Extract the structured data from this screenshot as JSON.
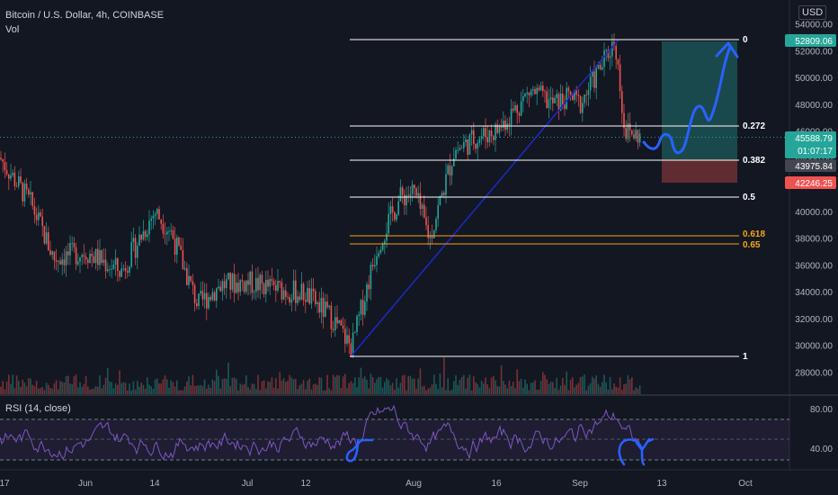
{
  "header": {
    "title": "Bitcoin / U.S. Dollar, 4h, COINBASE",
    "volume_label": "Vol",
    "currency": "USD"
  },
  "rsi": {
    "label": "RSI (14, close)",
    "ticks": [
      "80.00",
      "40.00"
    ],
    "levels": [
      70,
      50,
      30
    ]
  },
  "price_tags": [
    {
      "text": "52809.06",
      "price": 52809.06,
      "bg": "#26a69a",
      "fg": "#ffffff"
    },
    {
      "text": "45588.79",
      "price": 45588.79,
      "bg": "#26a69a",
      "fg": "#ffffff",
      "sub": "01:07:17"
    },
    {
      "text": "43975.84",
      "price": 43975.84,
      "bg": "#434651",
      "fg": "#ffffff"
    },
    {
      "text": "42246.25",
      "price": 42246.25,
      "bg": "#ef5350",
      "fg": "#ffffff"
    }
  ],
  "colors": {
    "background": "#131722",
    "up": "#26a69a",
    "down": "#ef5350",
    "fib_white": "#ffffff",
    "fib_orange": "#f7a21b",
    "trendline": "#1e28c8",
    "drawing": "#2962ff",
    "rsi_line": "#7e57c2"
  },
  "chart_data": {
    "type": "candlestick",
    "symbol": "BTCUSD",
    "interval": "4h",
    "y_axis": {
      "range": [
        26800,
        55000
      ],
      "ticks": [
        "54000.00",
        "52000.00",
        "50000.00",
        "48000.00",
        "46000.00",
        "44000.00",
        "42000.00",
        "40000.00",
        "38000.00",
        "36000.00",
        "34000.00",
        "32000.00",
        "30000.00",
        "28000.00"
      ]
    },
    "x_axis": {
      "ticks": [
        "17",
        "Jun",
        "14",
        "Jul",
        "12",
        "Aug",
        "16",
        "Sep",
        "13",
        "Oct"
      ]
    },
    "price_path": [
      {
        "x": "17",
        "y": 44000
      },
      {
        "x": "May 20",
        "y": 40500
      },
      {
        "x": "May 24",
        "y": 36500
      },
      {
        "x": "Jun",
        "y": 37000
      },
      {
        "x": "Jun 8",
        "y": 35500
      },
      {
        "x": "14",
        "y": 40000
      },
      {
        "x": "Jun 17",
        "y": 38500
      },
      {
        "x": "Jun 22",
        "y": 33000
      },
      {
        "x": "Jun 26",
        "y": 34500
      },
      {
        "x": "Jul",
        "y": 34700
      },
      {
        "x": "Jul 6",
        "y": 34200
      },
      {
        "x": "12",
        "y": 33800
      },
      {
        "x": "Jul 16",
        "y": 32000
      },
      {
        "x": "Jul 20",
        "y": 29800
      },
      {
        "x": "Jul 26",
        "y": 37500
      },
      {
        "x": "Jul 30",
        "y": 41000
      },
      {
        "x": "Aug",
        "y": 41500
      },
      {
        "x": "Aug 4",
        "y": 38000
      },
      {
        "x": "Aug 8",
        "y": 44500
      },
      {
        "x": "Aug 12",
        "y": 45500
      },
      {
        "x": "16",
        "y": 46000
      },
      {
        "x": "Aug 20",
        "y": 49000
      },
      {
        "x": "Aug 24",
        "y": 48000
      },
      {
        "x": "Aug 28",
        "y": 48500
      },
      {
        "x": "Sep",
        "y": 48000
      },
      {
        "x": "Sep 5",
        "y": 51000
      },
      {
        "x": "Sep 7",
        "y": 52809
      },
      {
        "x": "Sep 8",
        "y": 46000
      },
      {
        "x": "Sep 10",
        "y": 45589
      }
    ],
    "fibonacci": [
      {
        "level": "0",
        "price": 53000,
        "color": "#ffffff"
      },
      {
        "level": "0.272",
        "price": 46800,
        "color": "#ffffff"
      },
      {
        "level": "0.382",
        "price": 44200,
        "color": "#ffffff"
      },
      {
        "level": "0.5",
        "price": 41400,
        "color": "#ffffff"
      },
      {
        "level": "0.618",
        "price": 38300,
        "color": "#f7a21b"
      },
      {
        "level": "0.65",
        "price": 37550,
        "color": "#f7a21b"
      },
      {
        "level": "1",
        "price": 29300,
        "color": "#ffffff"
      }
    ],
    "position": {
      "target": 52809.06,
      "entry": 43975.84,
      "stop": 42246.25
    },
    "trendline": {
      "from": {
        "x": "Jul 20",
        "price": 29300
      },
      "to": {
        "x": "Sep 7",
        "price": 53400
      }
    }
  }
}
